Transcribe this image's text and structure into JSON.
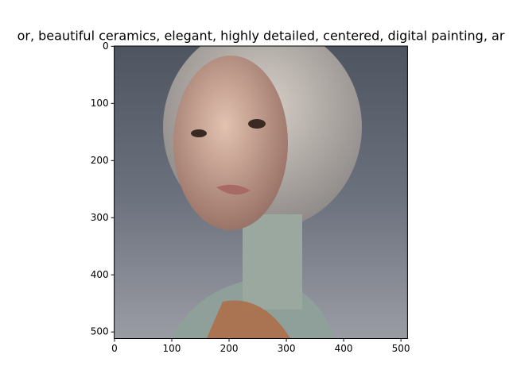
{
  "chart_data": {
    "type": "image",
    "title": "or,  beautiful ceramics, elegant, highly detailed, centered, digital painting, ar",
    "xlim": [
      -0.5,
      511.5
    ],
    "ylim": [
      511.5,
      -0.5
    ],
    "xticks": [
      0,
      100,
      200,
      300,
      400,
      500
    ],
    "yticks": [
      0,
      100,
      200,
      300,
      400,
      500
    ]
  }
}
